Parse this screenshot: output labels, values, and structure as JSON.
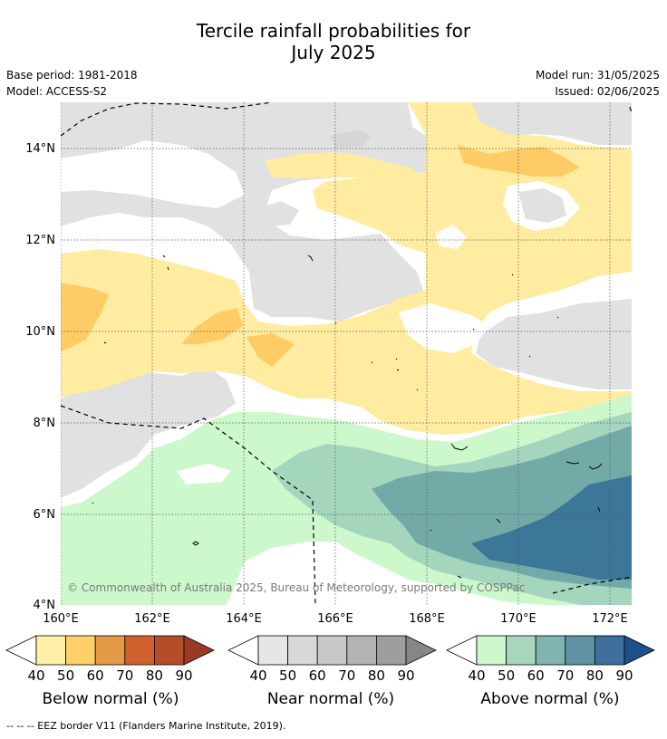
{
  "title_line1": "Tercile rainfall probabilities for",
  "title_line2": "July 2025",
  "base_period": "Base period: 1981-2018",
  "model": "Model: ACCESS-S2",
  "model_run": "Model run: 31/05/2025",
  "issued": "Issued: 02/06/2025",
  "copyright": "© Commonwealth of Australia 2025, Bureau of Meteorology, supported by COSPPac",
  "lat_labels": [
    "4°N",
    "6°N",
    "8°N",
    "10°N",
    "12°N",
    "14°N"
  ],
  "lon_labels": [
    "160°E",
    "162°E",
    "164°E",
    "166°E",
    "168°E",
    "170°E",
    "172°E"
  ],
  "colorbars": [
    {
      "name": "below",
      "label": "Below normal (%)",
      "ticks": [
        "40",
        "50",
        "60",
        "70",
        "80",
        "90"
      ],
      "colors": [
        "#fff0a8",
        "#fdd068",
        "#e59a48",
        "#d0612e",
        "#b44d2a",
        "#9b3a22"
      ]
    },
    {
      "name": "near",
      "label": "Near normal (%)",
      "ticks": [
        "40",
        "50",
        "60",
        "70",
        "80",
        "90"
      ],
      "colors": [
        "#e6e6e6",
        "#d8d8d8",
        "#c8c8c8",
        "#b3b3b3",
        "#9e9e9e",
        "#868686"
      ]
    },
    {
      "name": "above",
      "label": "Above normal (%)",
      "ticks": [
        "40",
        "50",
        "60",
        "70",
        "80",
        "90"
      ],
      "colors": [
        "#ccf8cc",
        "#a6d6be",
        "#80b4ae",
        "#5f93a4",
        "#3f6f9c",
        "#1f4f8a"
      ]
    }
  ],
  "footnote": "--  --  -- EEZ border V11 (Flanders Marine Institute, 2019)."
}
